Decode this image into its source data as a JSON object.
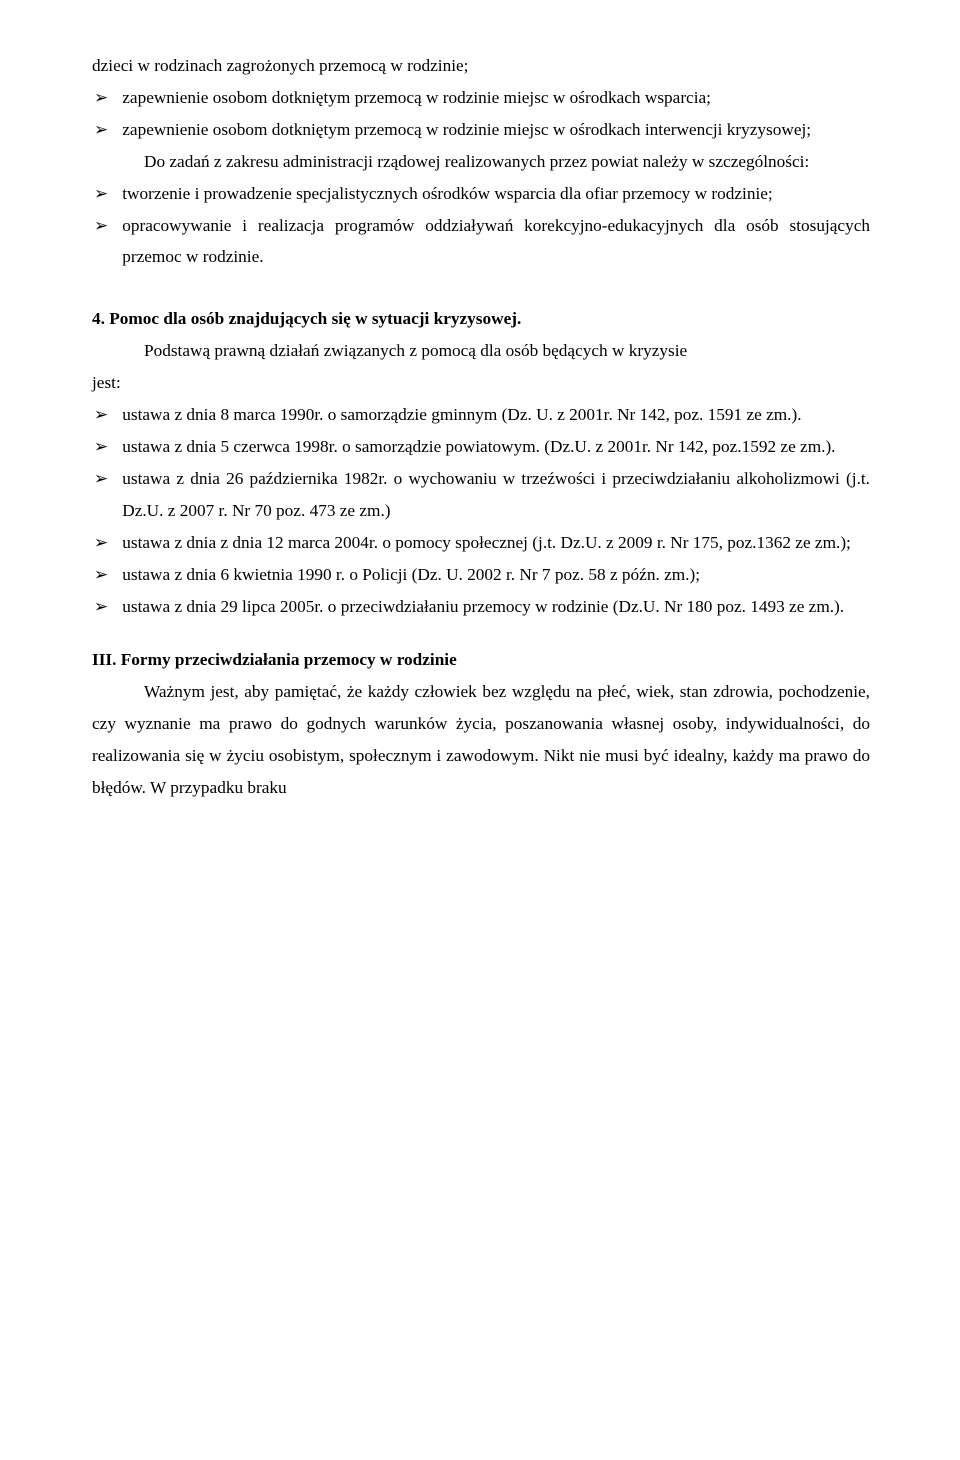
{
  "text_color": "#000000",
  "background_color": "#ffffff",
  "font_family": "Times New Roman",
  "font_size_pt": 13,
  "top_block": {
    "line1": "dzieci w rodzinach zagrożonych przemocą w rodzinie;",
    "bullets": [
      "zapewnienie osobom dotkniętym przemocą w rodzinie miejsc w ośrodkach wsparcia;",
      "zapewnienie osobom dotkniętym przemocą w rodzinie miejsc w ośrodkach interwencji kryzysowej;"
    ],
    "sub_heading": "Do zadań z zakresu administracji rządowej realizowanych przez powiat należy w szczególności:",
    "sub_bullets": [
      "tworzenie i prowadzenie specjalistycznych ośrodków wsparcia dla ofiar przemocy w rodzinie;",
      "opracowywanie i realizacja programów oddziaływań korekcyjno-edukacyjnych dla osób stosujących przemoc w rodzinie."
    ]
  },
  "section4": {
    "title": "4. Pomoc  dla osób znajdujących się w sytuacji kryzysowej.",
    "intro": "Podstawą prawną działań związanych z pomocą dla osób będących w kryzysie jest:",
    "intro_part1": "Podstawą prawną działań związanych z pomocą dla osób będących w kryzysie",
    "intro_part2": "jest:",
    "bullets": [
      "ustawa z dnia 8 marca 1990r. o samorządzie gminnym (Dz. U. z 2001r. Nr 142, poz. 1591 ze zm.).",
      "ustawa z dnia 5 czerwca 1998r. o samorządzie powiatowym. (Dz.U. z 2001r. Nr 142, poz.1592 ze zm.).",
      "ustawa z dnia 26 października 1982r. o wychowaniu w trzeźwości i przeciwdziałaniu alkoholizmowi (j.t. Dz.U. z 2007 r. Nr 70 poz. 473 ze zm.)",
      "ustawa z dnia z dnia 12 marca 2004r. o pomocy społecznej (j.t. Dz.U. z 2009 r. Nr 175, poz.1362 ze zm.);",
      "ustawa z dnia 6 kwietnia 1990 r. o Policji (Dz. U. 2002 r. Nr 7 poz. 58 z późn. zm.);",
      "ustawa z dnia 29 lipca 2005r. o przeciwdziałaniu przemocy w rodzinie (Dz.U. Nr 180 poz. 1493 ze zm.)."
    ]
  },
  "sectionIII": {
    "title": "III. Formy  przeciwdziałania przemocy w rodzinie",
    "body": "Ważnym jest, aby pamiętać, że każdy człowiek bez względu na płeć, wiek, stan zdrowia, pochodzenie, czy wyznanie ma prawo do godnych warunków życia, poszanowania własnej osoby, indywidualności, do realizowania się w życiu osobistym, społecznym i zawodowym. Nikt nie musi być idealny, każdy ma prawo do błędów. W przypadku braku"
  }
}
